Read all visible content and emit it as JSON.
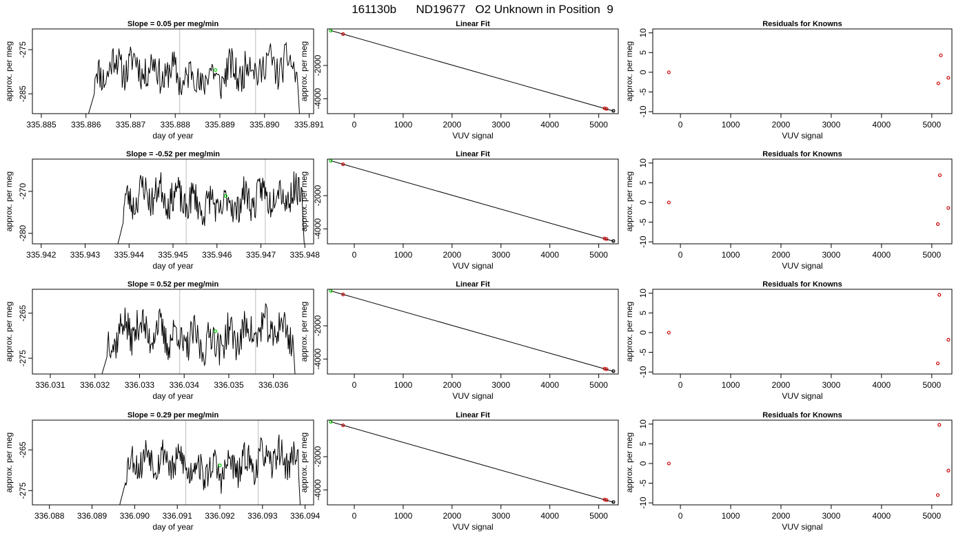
{
  "main_title": "161130b      ND19677   O2 Unknown in Position  9",
  "colors": {
    "line": "#000000",
    "fit": "#000000",
    "marker_green": "#00cc00",
    "marker_red": "#cc0000",
    "vline": "#bbbbbb",
    "box": "#000000"
  },
  "chart_data": [
    {
      "type": "line",
      "row": 0,
      "col": 0,
      "title": "Slope =  0.05  per meg/min",
      "xlabel": "day of year",
      "ylabel": "approx. per meg",
      "xlim": [
        335.8848,
        335.8911
      ],
      "ylim": [
        -289.5,
        -270.3
      ],
      "xticks": [
        "335.885",
        "335.886",
        "335.887",
        "335.888",
        "335.889",
        "335.890",
        "335.891"
      ],
      "yticks": [
        "-275",
        "-285"
      ],
      "vlines": [
        335.8881,
        335.8898
      ],
      "line_range": [
        335.886,
        335.8908
      ],
      "baseline": -280.0,
      "amplitude": 6.0,
      "seed": 11,
      "green_point": [
        335.8889,
        -279.6
      ]
    },
    {
      "type": "scatter",
      "row": 0,
      "col": 1,
      "title": "Linear Fit",
      "xlabel": "VUV signal",
      "ylabel": "approx. per meg",
      "xlim": [
        -550,
        5400
      ],
      "ylim": [
        -4900,
        200
      ],
      "xticks": [
        "0",
        "1000",
        "2000",
        "3000",
        "4000",
        "5000"
      ],
      "yticks": [
        "-2000",
        "-4000"
      ],
      "fit_line": {
        "x": [
          -480,
          5310
        ],
        "y": [
          100,
          -4750
        ]
      },
      "green_points": [
        {
          "x": -480,
          "y": 100
        }
      ],
      "red_points": [
        {
          "x": -230,
          "y": -110
        },
        {
          "x": 5120,
          "y": -4580
        },
        {
          "x": 5160,
          "y": -4610
        }
      ],
      "black_points": [
        {
          "x": 5300,
          "y": -4730
        }
      ]
    },
    {
      "type": "scatter",
      "row": 0,
      "col": 2,
      "title": "Residuals for Knowns",
      "xlabel": "VUV signal",
      "ylabel": "approx. per meg",
      "xlim": [
        -550,
        5400
      ],
      "ylim": [
        -10.5,
        11
      ],
      "xticks": [
        "0",
        "1000",
        "2000",
        "3000",
        "4000",
        "5000"
      ],
      "yticks": [
        "10",
        "5",
        "0",
        "-5",
        "-10"
      ],
      "red_points": [
        {
          "x": -230,
          "y": 0
        },
        {
          "x": 5130,
          "y": -2.8
        },
        {
          "x": 5180,
          "y": 4.3
        },
        {
          "x": 5330,
          "y": -1.4
        }
      ]
    },
    {
      "type": "line",
      "row": 1,
      "col": 0,
      "title": "Slope =  -0.52  per meg/min",
      "xlabel": "day of year",
      "ylabel": "approx. per meg",
      "xlim": [
        335.9418,
        335.9482
      ],
      "ylim": [
        -282.5,
        -262.3
      ],
      "xticks": [
        "335.942",
        "335.943",
        "335.944",
        "335.945",
        "335.946",
        "335.947",
        "335.948"
      ],
      "yticks": [
        "-270",
        "-280"
      ],
      "vlines": [
        335.9453,
        335.9471
      ],
      "line_range": [
        335.9437,
        335.948
      ],
      "baseline": -272.0,
      "amplitude": 6.0,
      "seed": 23,
      "green_point": [
        335.9462,
        -271.1
      ]
    },
    {
      "type": "scatter",
      "row": 1,
      "col": 1,
      "title": "Linear Fit",
      "xlabel": "VUV signal",
      "ylabel": "approx. per meg",
      "xlim": [
        -550,
        5400
      ],
      "ylim": [
        -4900,
        200
      ],
      "xticks": [
        "0",
        "1000",
        "2000",
        "3000",
        "4000",
        "5000"
      ],
      "yticks": [
        "-2000",
        "-4000"
      ],
      "fit_line": {
        "x": [
          -480,
          5310
        ],
        "y": [
          100,
          -4750
        ]
      },
      "green_points": [
        {
          "x": -480,
          "y": 100
        }
      ],
      "red_points": [
        {
          "x": -230,
          "y": -110
        },
        {
          "x": 5120,
          "y": -4580
        },
        {
          "x": 5160,
          "y": -4610
        }
      ],
      "black_points": [
        {
          "x": 5300,
          "y": -4730
        }
      ]
    },
    {
      "type": "scatter",
      "row": 1,
      "col": 2,
      "title": "Residuals for Knowns",
      "xlabel": "VUV signal",
      "ylabel": "approx. per meg",
      "xlim": [
        -550,
        5400
      ],
      "ylim": [
        -10.5,
        11
      ],
      "xticks": [
        "0",
        "1000",
        "2000",
        "3000",
        "4000",
        "5000"
      ],
      "yticks": [
        "10",
        "5",
        "0",
        "-5",
        "-10"
      ],
      "red_points": [
        {
          "x": -230,
          "y": 0
        },
        {
          "x": 5120,
          "y": -5.5
        },
        {
          "x": 5160,
          "y": 6.9
        },
        {
          "x": 5330,
          "y": -1.4
        }
      ]
    },
    {
      "type": "line",
      "row": 2,
      "col": 0,
      "title": "Slope =  0.52  per meg/min",
      "xlabel": "day of year",
      "ylabel": "approx. per meg",
      "xlim": [
        336.0306,
        336.0369
      ],
      "ylim": [
        -278.5,
        -259.7
      ],
      "xticks": [
        "336.031",
        "336.032",
        "336.033",
        "336.034",
        "336.035",
        "336.036"
      ],
      "yticks": [
        "-265",
        "-275"
      ],
      "vlines": [
        336.0339,
        336.0356
      ],
      "line_range": [
        336.0321,
        336.0365
      ],
      "baseline": -270.0,
      "amplitude": 6.0,
      "seed": 37,
      "green_point": [
        336.0347,
        -269.0
      ]
    },
    {
      "type": "scatter",
      "row": 2,
      "col": 1,
      "title": "Linear Fit",
      "xlabel": "VUV signal",
      "ylabel": "approx. per meg",
      "xlim": [
        -550,
        5400
      ],
      "ylim": [
        -4900,
        200
      ],
      "xticks": [
        "0",
        "1000",
        "2000",
        "3000",
        "4000",
        "5000"
      ],
      "yticks": [
        "-2000",
        "-4000"
      ],
      "fit_line": {
        "x": [
          -480,
          5310
        ],
        "y": [
          100,
          -4750
        ]
      },
      "green_points": [
        {
          "x": -480,
          "y": 100
        }
      ],
      "red_points": [
        {
          "x": -230,
          "y": -110
        },
        {
          "x": 5120,
          "y": -4580
        },
        {
          "x": 5160,
          "y": -4610
        }
      ],
      "black_points": [
        {
          "x": 5300,
          "y": -4730
        }
      ]
    },
    {
      "type": "scatter",
      "row": 2,
      "col": 2,
      "title": "Residuals for Knowns",
      "xlabel": "VUV signal",
      "ylabel": "approx. per meg",
      "xlim": [
        -550,
        5400
      ],
      "ylim": [
        -10.5,
        11
      ],
      "xticks": [
        "0",
        "1000",
        "2000",
        "3000",
        "4000",
        "5000"
      ],
      "yticks": [
        "10",
        "5",
        "0",
        "-5",
        "-10"
      ],
      "red_points": [
        {
          "x": -230,
          "y": 0
        },
        {
          "x": 5120,
          "y": -7.8
        },
        {
          "x": 5150,
          "y": 9.6
        },
        {
          "x": 5330,
          "y": -1.8
        }
      ]
    },
    {
      "type": "line",
      "row": 3,
      "col": 0,
      "title": "Slope =  0.29  per meg/min",
      "xlabel": "day of year",
      "ylabel": "approx. per meg",
      "xlim": [
        336.0876,
        336.0942
      ],
      "ylim": [
        -278.5,
        -257.7
      ],
      "xticks": [
        "336.088",
        "336.089",
        "336.090",
        "336.091",
        "336.092",
        "336.093",
        "336.094"
      ],
      "yticks": [
        "-265",
        "-275"
      ],
      "vlines": [
        336.0912,
        336.0929
      ],
      "line_range": [
        336.0896,
        336.0939
      ],
      "baseline": -268.5,
      "amplitude": 6.0,
      "seed": 53,
      "green_point": [
        336.092,
        -268.8
      ]
    },
    {
      "type": "scatter",
      "row": 3,
      "col": 1,
      "title": "Linear Fit",
      "xlabel": "VUV signal",
      "ylabel": "approx. per meg",
      "xlim": [
        -550,
        5400
      ],
      "ylim": [
        -4900,
        200
      ],
      "xticks": [
        "0",
        "1000",
        "2000",
        "3000",
        "4000",
        "5000"
      ],
      "yticks": [
        "-2000",
        "-4000"
      ],
      "fit_line": {
        "x": [
          -480,
          5310
        ],
        "y": [
          100,
          -4750
        ]
      },
      "green_points": [
        {
          "x": -480,
          "y": 100
        }
      ],
      "red_points": [
        {
          "x": -230,
          "y": -110
        },
        {
          "x": 5120,
          "y": -4580
        },
        {
          "x": 5160,
          "y": -4610
        }
      ],
      "black_points": [
        {
          "x": 5300,
          "y": -4730
        }
      ]
    },
    {
      "type": "scatter",
      "row": 3,
      "col": 2,
      "title": "Residuals for Knowns",
      "xlabel": "VUV signal",
      "ylabel": "approx. per meg",
      "xlim": [
        -550,
        5400
      ],
      "ylim": [
        -10.5,
        11
      ],
      "xticks": [
        "0",
        "1000",
        "2000",
        "3000",
        "4000",
        "5000"
      ],
      "yticks": [
        "10",
        "5",
        "0",
        "-5",
        "-10"
      ],
      "red_points": [
        {
          "x": -230,
          "y": 0
        },
        {
          "x": 5120,
          "y": -8.0
        },
        {
          "x": 5150,
          "y": 9.8
        },
        {
          "x": 5330,
          "y": -1.8
        }
      ]
    }
  ]
}
